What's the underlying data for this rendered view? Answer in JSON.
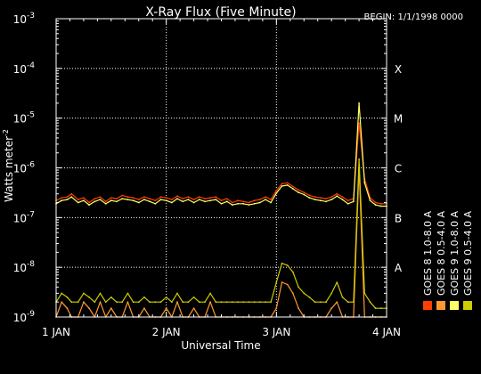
{
  "chart_data": {
    "type": "line",
    "title": "X-Ray Flux (Five Minute)",
    "begin_label": "BEGIN: 1/1/1998 0000",
    "xlabel": "Universal Time",
    "ylabel": "Watts meter",
    "ylabel_sup": "-2",
    "yscale": "log",
    "ylim": [
      1e-09,
      0.001
    ],
    "xlim": [
      0,
      3
    ],
    "grid": true,
    "x_ticks": [
      {
        "value": 0,
        "label": "1 JAN"
      },
      {
        "value": 1,
        "label": "2 JAN"
      },
      {
        "value": 2,
        "label": "3 JAN"
      },
      {
        "value": 3,
        "label": "4 JAN"
      }
    ],
    "y_ticks": [
      {
        "exp": -9,
        "base": "10",
        "sup": "-9"
      },
      {
        "exp": -8,
        "base": "10",
        "sup": "-8"
      },
      {
        "exp": -7,
        "base": "10",
        "sup": "-7"
      },
      {
        "exp": -6,
        "base": "10",
        "sup": "-6"
      },
      {
        "exp": -5,
        "base": "10",
        "sup": "-5"
      },
      {
        "exp": -4,
        "base": "10",
        "sup": "-4"
      },
      {
        "exp": -3,
        "base": "10",
        "sup": "-3"
      }
    ],
    "flare_classes": [
      {
        "label": "A",
        "exp": -8
      },
      {
        "label": "B",
        "exp": -7
      },
      {
        "label": "C",
        "exp": -6
      },
      {
        "label": "M",
        "exp": -5
      },
      {
        "label": "X",
        "exp": -4
      }
    ],
    "legend": [
      {
        "name": "GOES 8 1.0-8.0 A",
        "color": "#ff4000"
      },
      {
        "name": "GOES 8 0.5-4.0 A",
        "color": "#ff9933"
      },
      {
        "name": "GOES 9 1.0-8.0 A",
        "color": "#ffff66"
      },
      {
        "name": "GOES 9 0.5-4.0 A",
        "color": "#cccc00"
      }
    ],
    "series": [
      {
        "name": "GOES 8 1.0-8.0 A",
        "color": "#ff4000",
        "band": "long",
        "x": [
          0.0,
          0.05,
          0.1,
          0.14,
          0.2,
          0.25,
          0.3,
          0.35,
          0.4,
          0.45,
          0.5,
          0.55,
          0.6,
          0.65,
          0.7,
          0.75,
          0.8,
          0.85,
          0.9,
          0.95,
          1.0,
          1.05,
          1.1,
          1.15,
          1.2,
          1.25,
          1.3,
          1.35,
          1.4,
          1.45,
          1.5,
          1.55,
          1.6,
          1.65,
          1.7,
          1.75,
          1.8,
          1.85,
          1.9,
          1.95,
          2.0,
          2.05,
          2.1,
          2.15,
          2.2,
          2.25,
          2.3,
          2.35,
          2.4,
          2.45,
          2.5,
          2.55,
          2.6,
          2.65,
          2.7,
          2.75,
          2.8,
          2.85,
          2.9,
          2.95,
          3.0
        ],
        "y": [
          2.2e-07,
          2.5e-07,
          2.6e-07,
          3e-07,
          2.3e-07,
          2.5e-07,
          2e-07,
          2.4e-07,
          2.6e-07,
          2.1e-07,
          2.5e-07,
          2.4e-07,
          2.8e-07,
          2.6e-07,
          2.5e-07,
          2.3e-07,
          2.6e-07,
          2.4e-07,
          2.2e-07,
          2.6e-07,
          2.5e-07,
          2.3e-07,
          2.7e-07,
          2.4e-07,
          2.6e-07,
          2.3e-07,
          2.6e-07,
          2.4e-07,
          2.5e-07,
          2.6e-07,
          2.2e-07,
          2.4e-07,
          2e-07,
          2.2e-07,
          2.1e-07,
          2e-07,
          2.2e-07,
          2.3e-07,
          2.6e-07,
          2.3e-07,
          3.5e-07,
          4.8e-07,
          5e-07,
          4.2e-07,
          3.6e-07,
          3.2e-07,
          2.8e-07,
          2.6e-07,
          2.5e-07,
          2.4e-07,
          2.6e-07,
          3e-07,
          2.6e-07,
          2.2e-07,
          2.4e-07,
          8e-06,
          6e-07,
          2.5e-07,
          2e-07,
          1.9e-07,
          1.9e-07
        ]
      },
      {
        "name": "GOES 8 0.5-4.0 A",
        "color": "#ff9933",
        "band": "short",
        "x": [
          0.0,
          0.05,
          0.1,
          0.14,
          0.2,
          0.25,
          0.3,
          0.35,
          0.4,
          0.45,
          0.5,
          0.55,
          0.6,
          0.65,
          0.7,
          0.75,
          0.8,
          0.85,
          0.9,
          0.95,
          1.0,
          1.05,
          1.1,
          1.15,
          1.2,
          1.25,
          1.3,
          1.35,
          1.4,
          1.45,
          1.5,
          1.55,
          1.6,
          1.65,
          1.7,
          1.75,
          1.8,
          1.85,
          1.9,
          1.95,
          2.0,
          2.05,
          2.1,
          2.15,
          2.2,
          2.25,
          2.3,
          2.35,
          2.4,
          2.45,
          2.5,
          2.55,
          2.6,
          2.65,
          2.7,
          2.75,
          2.8,
          2.85,
          2.9,
          2.95,
          3.0
        ],
        "y": [
          1e-09,
          2e-09,
          1.5e-09,
          1e-09,
          1e-09,
          2e-09,
          1.5e-09,
          1e-09,
          2e-09,
          1e-09,
          1.5e-09,
          1e-09,
          1e-09,
          2e-09,
          1e-09,
          1e-09,
          1.5e-09,
          1e-09,
          1e-09,
          1e-09,
          1.5e-09,
          1e-09,
          2e-09,
          1e-09,
          1e-09,
          1.5e-09,
          1e-09,
          1e-09,
          2e-09,
          1e-09,
          1e-09,
          1e-09,
          1e-09,
          1e-09,
          1e-09,
          1e-09,
          1e-09,
          1e-09,
          1e-09,
          1e-09,
          1.5e-09,
          5e-09,
          4.5e-09,
          3e-09,
          1.5e-09,
          1e-09,
          1e-09,
          1e-09,
          1e-09,
          1e-09,
          1.5e-09,
          2e-09,
          1e-09,
          1e-09,
          1e-09,
          1e-06,
          1e-09,
          1e-09,
          1e-09,
          1e-09,
          1e-09
        ]
      },
      {
        "name": "GOES 9 1.0-8.0 A",
        "color": "#ffff66",
        "band": "long",
        "x": [
          0.0,
          0.05,
          0.1,
          0.14,
          0.2,
          0.25,
          0.3,
          0.35,
          0.4,
          0.45,
          0.5,
          0.55,
          0.6,
          0.65,
          0.7,
          0.75,
          0.8,
          0.85,
          0.9,
          0.95,
          1.0,
          1.05,
          1.1,
          1.15,
          1.2,
          1.25,
          1.3,
          1.35,
          1.4,
          1.45,
          1.5,
          1.55,
          1.6,
          1.65,
          1.7,
          1.75,
          1.8,
          1.85,
          1.9,
          1.95,
          2.0,
          2.05,
          2.1,
          2.15,
          2.2,
          2.25,
          2.3,
          2.35,
          2.4,
          2.45,
          2.5,
          2.55,
          2.6,
          2.65,
          2.7,
          2.75,
          2.8,
          2.85,
          2.9,
          2.95,
          3.0
        ],
        "y": [
          1.9e-07,
          2.2e-07,
          2.3e-07,
          2.6e-07,
          2e-07,
          2.2e-07,
          1.8e-07,
          2.1e-07,
          2.3e-07,
          1.9e-07,
          2.2e-07,
          2.1e-07,
          2.4e-07,
          2.3e-07,
          2.2e-07,
          2e-07,
          2.3e-07,
          2.1e-07,
          1.9e-07,
          2.3e-07,
          2.2e-07,
          2e-07,
          2.4e-07,
          2.1e-07,
          2.3e-07,
          2e-07,
          2.3e-07,
          2.1e-07,
          2.2e-07,
          2.3e-07,
          1.9e-07,
          2.1e-07,
          1.8e-07,
          1.9e-07,
          1.9e-07,
          1.8e-07,
          1.9e-07,
          2e-07,
          2.3e-07,
          2e-07,
          3.1e-07,
          4.3e-07,
          4.5e-07,
          3.8e-07,
          3.2e-07,
          2.9e-07,
          2.5e-07,
          2.3e-07,
          2.2e-07,
          2.1e-07,
          2.3e-07,
          2.7e-07,
          2.3e-07,
          1.9e-07,
          2.1e-07,
          2e-05,
          5e-07,
          2.2e-07,
          1.8e-07,
          1.7e-07,
          1.7e-07
        ]
      },
      {
        "name": "GOES 9 0.5-4.0 A",
        "color": "#cccc00",
        "band": "short",
        "x": [
          0.0,
          0.05,
          0.1,
          0.14,
          0.2,
          0.25,
          0.3,
          0.35,
          0.4,
          0.45,
          0.5,
          0.55,
          0.6,
          0.65,
          0.7,
          0.75,
          0.8,
          0.85,
          0.9,
          0.95,
          1.0,
          1.05,
          1.1,
          1.15,
          1.2,
          1.25,
          1.3,
          1.35,
          1.4,
          1.45,
          1.5,
          1.55,
          1.6,
          1.65,
          1.7,
          1.75,
          1.8,
          1.85,
          1.9,
          1.95,
          2.0,
          2.05,
          2.1,
          2.15,
          2.2,
          2.25,
          2.3,
          2.35,
          2.4,
          2.45,
          2.5,
          2.55,
          2.6,
          2.65,
          2.7,
          2.75,
          2.8,
          2.85,
          2.9,
          2.95,
          3.0
        ],
        "y": [
          2e-09,
          3e-09,
          2.5e-09,
          2e-09,
          2e-09,
          3e-09,
          2.5e-09,
          2e-09,
          3e-09,
          2e-09,
          2.5e-09,
          2e-09,
          2e-09,
          3e-09,
          2e-09,
          2e-09,
          2.5e-09,
          2e-09,
          2e-09,
          2e-09,
          2.5e-09,
          2e-09,
          3e-09,
          2e-09,
          2e-09,
          2.5e-09,
          2e-09,
          2e-09,
          3e-09,
          2e-09,
          2e-09,
          2e-09,
          2e-09,
          2e-09,
          2e-09,
          2e-09,
          2e-09,
          2e-09,
          2e-09,
          2e-09,
          5e-09,
          1.2e-08,
          1.1e-08,
          8e-09,
          4e-09,
          3e-09,
          2.5e-09,
          2e-09,
          2e-09,
          2e-09,
          3e-09,
          5e-09,
          2.5e-09,
          2e-09,
          2e-09,
          1.5e-06,
          3e-09,
          2e-09,
          1.5e-09,
          1.5e-09,
          1.5e-09
        ]
      }
    ]
  }
}
